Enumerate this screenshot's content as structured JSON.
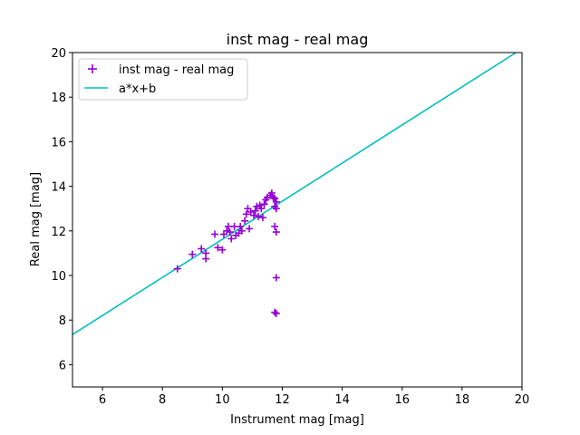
{
  "chart_data": {
    "type": "scatter",
    "title": "inst mag - real mag",
    "xlabel": "Instrument mag [mag]",
    "ylabel": "Real mag [mag]",
    "xlim": [
      5,
      20
    ],
    "ylim": [
      5,
      20
    ],
    "xticks": [
      6,
      8,
      10,
      12,
      14,
      16,
      18,
      20
    ],
    "yticks": [
      6,
      8,
      10,
      12,
      14,
      16,
      18,
      20
    ],
    "grid": false,
    "legend_position": "top-left",
    "series": [
      {
        "name": "inst mag - real mag",
        "kind": "scatter",
        "marker": "plus",
        "color": "#9400d3",
        "points": [
          [
            8.5,
            10.3
          ],
          [
            9.0,
            10.95
          ],
          [
            9.3,
            11.2
          ],
          [
            9.45,
            10.75
          ],
          [
            9.45,
            11.0
          ],
          [
            9.75,
            11.85
          ],
          [
            9.85,
            11.25
          ],
          [
            10.0,
            11.15
          ],
          [
            10.05,
            11.85
          ],
          [
            10.15,
            12.0
          ],
          [
            10.2,
            12.2
          ],
          [
            10.25,
            11.95
          ],
          [
            10.3,
            11.65
          ],
          [
            10.4,
            12.2
          ],
          [
            10.45,
            11.8
          ],
          [
            10.55,
            11.9
          ],
          [
            10.6,
            12.2
          ],
          [
            10.65,
            12.0
          ],
          [
            10.75,
            12.45
          ],
          [
            10.8,
            12.75
          ],
          [
            10.85,
            13.0
          ],
          [
            10.9,
            12.1
          ],
          [
            10.95,
            12.85
          ],
          [
            11.05,
            12.7
          ],
          [
            11.1,
            12.9
          ],
          [
            11.15,
            13.1
          ],
          [
            11.2,
            12.65
          ],
          [
            11.25,
            13.15
          ],
          [
            11.3,
            13.0
          ],
          [
            11.35,
            12.6
          ],
          [
            11.4,
            13.2
          ],
          [
            11.45,
            13.4
          ],
          [
            11.5,
            13.5
          ],
          [
            11.6,
            13.6
          ],
          [
            11.65,
            13.7
          ],
          [
            11.7,
            13.5
          ],
          [
            11.75,
            13.45
          ],
          [
            11.75,
            13.1
          ],
          [
            11.75,
            12.2
          ],
          [
            11.8,
            13.3
          ],
          [
            11.8,
            13.0
          ],
          [
            11.8,
            11.95
          ],
          [
            11.8,
            9.9
          ],
          [
            11.75,
            8.35
          ],
          [
            11.8,
            8.3
          ]
        ]
      },
      {
        "name": "a*x+b",
        "kind": "line",
        "color": "#00bfbf",
        "points": [
          [
            5,
            7.35
          ],
          [
            19.8,
            20.0
          ]
        ]
      }
    ]
  }
}
